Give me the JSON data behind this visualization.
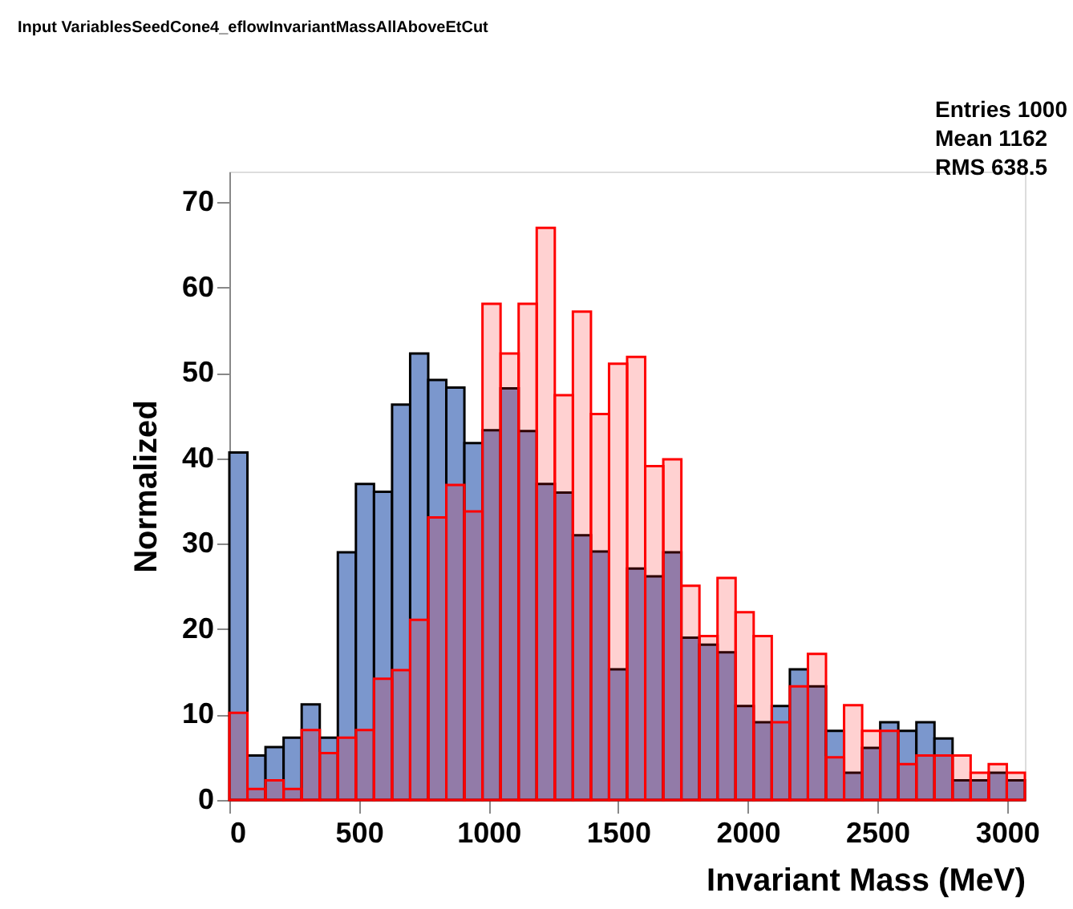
{
  "chart_data": {
    "type": "histogram",
    "title": "Input VariablesSeedCone4_eflowInvariantMassAllAboveEtCut",
    "xlabel": "Invariant Mass  (MeV)",
    "ylabel": "Normalized",
    "bins": [
      0,
      69.75,
      139.5,
      209.25,
      279,
      348.75,
      418.5,
      488.25,
      558,
      627.75,
      697.5,
      767.25,
      837,
      906.75,
      976.5,
      1046.25,
      1116,
      1185.75,
      1255.5,
      1325.25,
      1395,
      1464.75,
      1534.5,
      1604.25,
      1674,
      1743.75,
      1813.5,
      1883.25,
      1953,
      2022.75,
      2092.5,
      2162.25,
      2232,
      2301.75,
      2371.5,
      2441.25,
      2511,
      2580.75,
      2650.5,
      2720.25,
      2790,
      2859.75,
      2929.5,
      2999.25,
      3069
    ],
    "series": [
      {
        "color": "#7b97cd",
        "values": [
          40.7,
          5.2,
          6.2,
          7.3,
          11.2,
          7.3,
          29,
          37,
          36.1,
          46.3,
          52.3,
          49.2,
          48.3,
          41.8,
          43.3,
          48.2,
          43.2,
          37,
          36,
          31,
          29.1,
          15.3,
          27.1,
          26.2,
          29,
          19,
          18.2,
          17.3,
          11,
          9.1,
          11,
          15.3,
          13.3,
          8.1,
          3.2,
          6.1,
          9.1,
          8.1,
          9.1,
          7.2,
          2.3,
          2.3,
          3.2,
          2.3
        ]
      },
      {
        "color": "#ff0000",
        "values": [
          10.2,
          1.3,
          2.3,
          1.3,
          8.2,
          5.5,
          7.3,
          8.2,
          14.2,
          15.2,
          21.1,
          33.1,
          36.9,
          33.8,
          58.1,
          52.3,
          58.1,
          67,
          47.4,
          57.2,
          45.2,
          51.1,
          51.9,
          39.1,
          39.9,
          25.1,
          19.2,
          26,
          22,
          19.2,
          9.1,
          13.3,
          17.1,
          5,
          11.1,
          8.1,
          8.1,
          4.2,
          5.2,
          5.2,
          5.2,
          3.2,
          4.2,
          3.2
        ]
      }
    ],
    "xlim": [
      0,
      3069
    ],
    "ylim": [
      0,
      73.6
    ],
    "xticks": [
      0,
      500,
      1000,
      1500,
      2000,
      2500,
      3000
    ],
    "yticks": [
      0,
      10,
      20,
      30,
      40,
      50,
      60,
      70
    ],
    "grid": false,
    "annotations": [
      "Entries    1000",
      "Mean       1162",
      "RMS       638.5"
    ]
  }
}
